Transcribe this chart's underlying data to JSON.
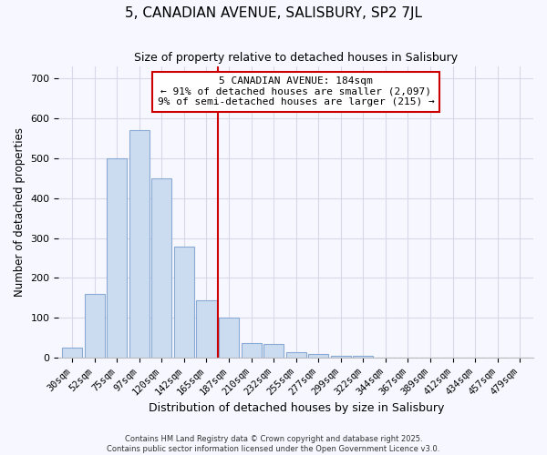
{
  "title": "5, CANADIAN AVENUE, SALISBURY, SP2 7JL",
  "subtitle": "Size of property relative to detached houses in Salisbury",
  "xlabel": "Distribution of detached houses by size in Salisbury",
  "ylabel": "Number of detached properties",
  "bar_labels": [
    "30sqm",
    "52sqm",
    "75sqm",
    "97sqm",
    "120sqm",
    "142sqm",
    "165sqm",
    "187sqm",
    "210sqm",
    "232sqm",
    "255sqm",
    "277sqm",
    "299sqm",
    "322sqm",
    "344sqm",
    "367sqm",
    "389sqm",
    "412sqm",
    "434sqm",
    "457sqm",
    "479sqm"
  ],
  "bar_values": [
    25,
    160,
    500,
    570,
    450,
    278,
    143,
    100,
    37,
    35,
    15,
    10,
    5,
    4,
    1,
    0,
    0,
    0,
    0,
    0,
    0
  ],
  "bar_color": "#ccdcf0",
  "bar_edge_color": "#88aad4",
  "vline_x": 7,
  "vline_color": "#cc0000",
  "vline_linewidth": 1.5,
  "annotation_title": "5 CANADIAN AVENUE: 184sqm",
  "annotation_line1": "← 91% of detached houses are smaller (2,097)",
  "annotation_line2": "9% of semi-detached houses are larger (215) →",
  "annotation_box_color": "#ffffff",
  "annotation_box_edge": "#cc0000",
  "ylim": [
    0,
    730
  ],
  "yticks": [
    0,
    100,
    200,
    300,
    400,
    500,
    600,
    700
  ],
  "grid_color": "#d8d8e8",
  "background_color": "#f7f7ff",
  "footnote1": "Contains HM Land Registry data © Crown copyright and database right 2025.",
  "footnote2": "Contains public sector information licensed under the Open Government Licence v3.0."
}
